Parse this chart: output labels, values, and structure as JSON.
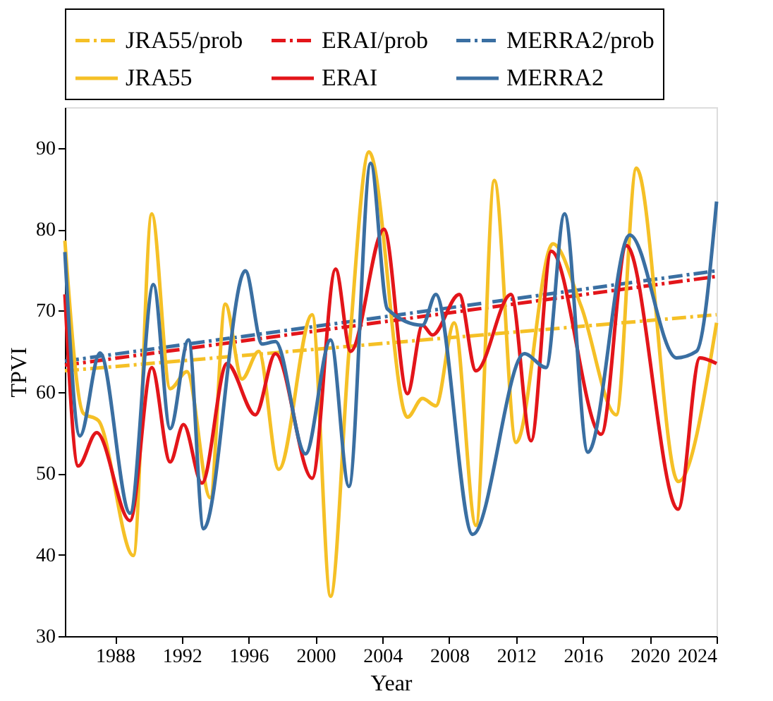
{
  "chart_data": {
    "type": "line",
    "xlabel": "Year",
    "ylabel": "TPVI",
    "xlim": [
      1985,
      2024
    ],
    "ylim": [
      30,
      95
    ],
    "xticks": [
      1988,
      1992,
      1996,
      2000,
      2004,
      2008,
      2012,
      2016,
      2020,
      2024
    ],
    "yticks": [
      30,
      40,
      50,
      60,
      70,
      80,
      90
    ],
    "grid": false,
    "legend": "top",
    "marker": "none",
    "series": [
      {
        "name": "JRA55/prob",
        "color": "#f5c026",
        "type": "line",
        "line_style": "dashed",
        "x": [
          1985,
          2024
        ],
        "values": [
          62.6,
          69.5
        ]
      },
      {
        "name": "ERAI/prob",
        "color": "#e3151a",
        "type": "line",
        "line_style": "dashed",
        "x": [
          1985,
          2024
        ],
        "values": [
          63.3,
          74.2
        ]
      },
      {
        "name": "MERRA2/prob",
        "color": "#3a6fa2",
        "type": "line",
        "line_style": "dashed",
        "x": [
          1985,
          2024
        ],
        "values": [
          63.8,
          74.9
        ]
      },
      {
        "name": "JRA55",
        "color": "#f5c026",
        "type": "line",
        "line_style": "solid",
        "x": [
          1985,
          1986.1,
          1987,
          1989.1,
          1990.2,
          1991.3,
          1992.3,
          1993.7,
          1994.6,
          1995.6,
          1996.6,
          1997.8,
          1999.8,
          2000.9,
          2002.0,
          2003.2,
          2005.5,
          2006.4,
          2007.2,
          2008.3,
          2009.6,
          2010.7,
          2012.0,
          2014.2,
          2015.9,
          2018.0,
          2019.2,
          2021.7,
          2024
        ],
        "values": [
          78.6,
          57.4,
          56.5,
          39.9,
          81.9,
          60.4,
          62.5,
          47,
          70.8,
          61.6,
          65,
          50.5,
          69.5,
          34.9,
          65,
          89.5,
          56.9,
          59.2,
          58.3,
          68.5,
          43.6,
          86,
          53.8,
          78.2,
          70.5,
          57.2,
          87.5,
          49,
          68.5
        ]
      },
      {
        "name": "ERAI",
        "color": "#e3151a",
        "type": "line",
        "line_style": "solid",
        "x": [
          1985,
          1985.8,
          1986.9,
          1988.9,
          1990.2,
          1991.3,
          1992.1,
          1993.2,
          1994.7,
          1996.4,
          1997.6,
          1999.8,
          2001.2,
          2002.1,
          2004.1,
          2005.5,
          2006.4,
          2007.0,
          2008.6,
          2009.6,
          2011.7,
          2012.9,
          2014.1,
          2017.1,
          2018.6,
          2021.7,
          2023.0,
          2024
        ],
        "values": [
          72,
          50.9,
          55,
          44.2,
          63,
          51.4,
          56,
          48.8,
          63.5,
          57.2,
          64.7,
          49.4,
          75.1,
          65,
          80,
          59.8,
          68.2,
          67,
          72,
          62.6,
          72,
          54,
          77.3,
          54.8,
          78,
          45.6,
          64.2,
          63.5
        ]
      },
      {
        "name": "MERRA2",
        "color": "#3a6fa2",
        "type": "line",
        "line_style": "solid",
        "x": [
          1985,
          1985.9,
          1987.1,
          1988.9,
          1990.3,
          1991.3,
          1992.4,
          1993.3,
          1995.8,
          1996.8,
          1997.6,
          1999.4,
          2000.9,
          2002.0,
          2003.3,
          2004.3,
          2006.4,
          2007.2,
          2009.4,
          2012.5,
          2013.8,
          2014.9,
          2016.3,
          2018.8,
          2021.6,
          2022.8,
          2024
        ],
        "values": [
          77.2,
          54.6,
          64.8,
          45.1,
          73.2,
          55.5,
          66.4,
          43.2,
          74.9,
          65.9,
          66.2,
          52.4,
          66.4,
          48.4,
          88.1,
          70.2,
          68.2,
          72,
          42.5,
          64.7,
          63,
          81.9,
          52.6,
          79.3,
          64.2,
          65,
          83.4
        ]
      }
    ]
  }
}
